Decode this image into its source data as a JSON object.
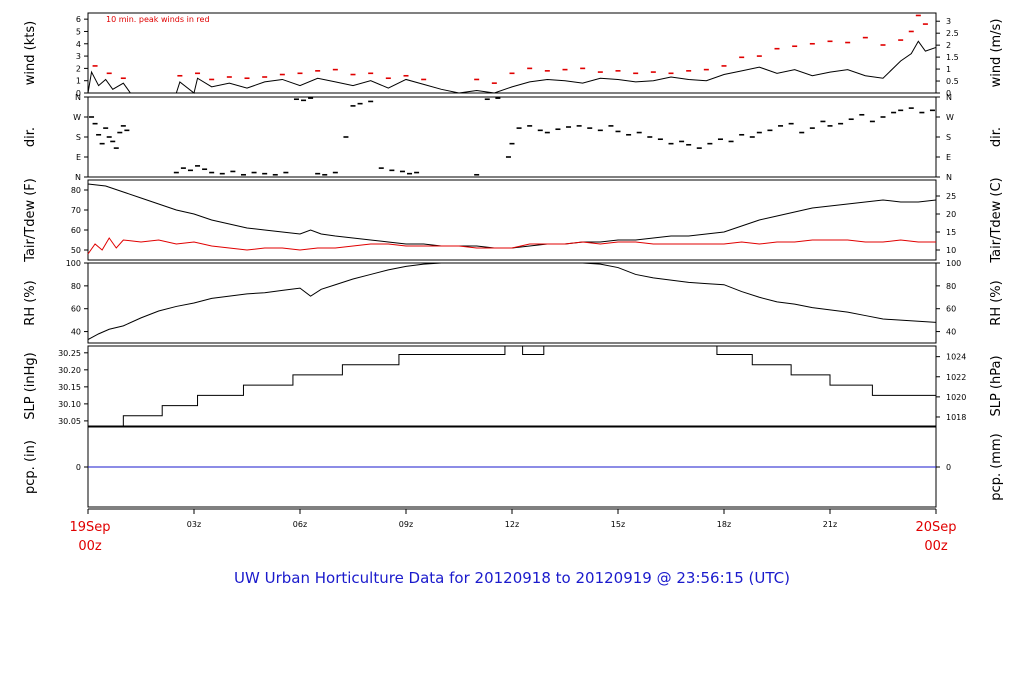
{
  "title": "UW Urban Horticulture Data for 20120918  to  20120919 @ 23:56:15  (UTC)",
  "colors": {
    "line": "#000000",
    "peak": "#e00000",
    "dew": "#e00000",
    "pcp": "#1a1acc",
    "title": "#1a1acc",
    "date_label": "#e00000"
  },
  "x_axis": {
    "ticks": [
      {
        "hour": 3,
        "label": "03z"
      },
      {
        "hour": 6,
        "label": "06z"
      },
      {
        "hour": 9,
        "label": "09z"
      },
      {
        "hour": 12,
        "label": "12z"
      },
      {
        "hour": 15,
        "label": "15z"
      },
      {
        "hour": 18,
        "label": "18z"
      },
      {
        "hour": 21,
        "label": "21z"
      }
    ],
    "start_label": [
      "19Sep",
      "00z"
    ],
    "end_label": [
      "20Sep",
      "00z"
    ],
    "range_hours": [
      0,
      24
    ]
  },
  "chart_data": [
    {
      "id": "wind",
      "type": "line",
      "ylabel_left": "wind (kts)",
      "ylabel_right": "wind (m/s)",
      "annotation": "10 min. peak winds in red",
      "ylim": [
        0,
        6.5
      ],
      "left_ticks": [
        0,
        1,
        2,
        3,
        4,
        5,
        6
      ],
      "right_ticks": [
        {
          "v": 0,
          "label": "0"
        },
        {
          "v": 0.5,
          "label": "0.5"
        },
        {
          "v": 1,
          "label": "1"
        },
        {
          "v": 1.5,
          "label": "1.5"
        },
        {
          "v": 2,
          "label": "2"
        },
        {
          "v": 2.5,
          "label": "2.5"
        },
        {
          "v": 3,
          "label": "3"
        }
      ],
      "right_factor": 1.944,
      "series": [
        {
          "role": "mean",
          "x": [
            0,
            0.1,
            0.3,
            0.5,
            0.7,
            1,
            1.2,
            2.5,
            2.6,
            3,
            3.1,
            3.5,
            4,
            4.5,
            5,
            5.5,
            6,
            6.5,
            7,
            7.5,
            8,
            8.5,
            9,
            9.5,
            10,
            10.5,
            11,
            11.5,
            12,
            12.5,
            13,
            13.5,
            14,
            14.5,
            15,
            15.5,
            16,
            16.5,
            17,
            17.5,
            18,
            18.5,
            19,
            19.5,
            20,
            20.5,
            21,
            21.5,
            22,
            22.5,
            23,
            23.3,
            23.5,
            23.7,
            24
          ],
          "values": [
            0,
            1.7,
            0.6,
            1.1,
            0.3,
            0.8,
            0,
            0,
            0.9,
            0,
            1.2,
            0.5,
            0.8,
            0.4,
            0.9,
            1.1,
            0.6,
            1.2,
            0.9,
            0.6,
            1,
            0.4,
            1.1,
            0.7,
            0.3,
            0,
            0.2,
            0,
            0.5,
            0.9,
            1.1,
            1,
            0.8,
            1.2,
            1.1,
            0.9,
            1,
            1.3,
            1.1,
            1,
            1.5,
            1.8,
            2.1,
            1.6,
            1.9,
            1.4,
            1.7,
            1.9,
            1.4,
            1.2,
            2.6,
            3.2,
            4.2,
            3.4,
            3.7
          ]
        },
        {
          "role": "peak",
          "x": [
            0.2,
            0.6,
            1,
            2.6,
            3.1,
            3.5,
            4,
            4.5,
            5,
            5.5,
            6,
            6.5,
            7,
            7.5,
            8,
            8.5,
            9,
            9.5,
            11,
            11.5,
            12,
            12.5,
            13,
            13.5,
            14,
            14.5,
            15,
            15.5,
            16,
            16.5,
            17,
            17.5,
            18,
            18.5,
            19,
            19.5,
            20,
            20.5,
            21,
            21.5,
            22,
            22.5,
            23,
            23.3,
            23.5,
            23.7
          ],
          "values": [
            2.2,
            1.6,
            1.2,
            1.4,
            1.6,
            1.1,
            1.3,
            1.2,
            1.3,
            1.5,
            1.6,
            1.8,
            1.9,
            1.5,
            1.6,
            1.2,
            1.4,
            1.1,
            1.1,
            0.8,
            1.6,
            2,
            1.8,
            1.9,
            2,
            1.7,
            1.8,
            1.6,
            1.7,
            1.6,
            1.8,
            1.9,
            2.2,
            2.9,
            3,
            3.6,
            3.8,
            4,
            4.2,
            4.1,
            4.5,
            3.9,
            4.3,
            5,
            6.3,
            5.6
          ]
        }
      ]
    },
    {
      "id": "dir",
      "type": "scatter",
      "ylabel_left": "dir.",
      "ylabel_right": "dir.",
      "ylim": [
        0,
        360
      ],
      "left_ticks": [
        {
          "v": 0,
          "label": "N"
        },
        {
          "v": 90,
          "label": "E"
        },
        {
          "v": 180,
          "label": "S"
        },
        {
          "v": 270,
          "label": "W"
        },
        {
          "v": 360,
          "label": "N"
        }
      ],
      "series": [
        {
          "role": "direction",
          "x": [
            0.1,
            0.2,
            0.3,
            0.4,
            0.5,
            0.6,
            0.7,
            0.8,
            0.9,
            1,
            1.1,
            2.5,
            2.7,
            2.9,
            3.1,
            3.3,
            3.5,
            3.8,
            4.1,
            4.4,
            4.7,
            5,
            5.3,
            5.6,
            5.9,
            6.1,
            6.3,
            6.5,
            6.7,
            7,
            7.3,
            7.5,
            7.7,
            8,
            8.3,
            8.6,
            8.9,
            9.1,
            9.3,
            11,
            11.3,
            11.6,
            11.9,
            12,
            12.2,
            12.5,
            12.8,
            13,
            13.3,
            13.6,
            13.9,
            14.2,
            14.5,
            14.8,
            15,
            15.3,
            15.6,
            15.9,
            16.2,
            16.5,
            16.8,
            17,
            17.3,
            17.6,
            17.9,
            18.2,
            18.5,
            18.8,
            19,
            19.3,
            19.6,
            19.9,
            20.2,
            20.5,
            20.8,
            21,
            21.3,
            21.6,
            21.9,
            22.2,
            22.5,
            22.8,
            23,
            23.3,
            23.6,
            23.9
          ],
          "values": [
            270,
            240,
            190,
            150,
            220,
            180,
            160,
            130,
            200,
            230,
            210,
            20,
            40,
            30,
            50,
            35,
            20,
            15,
            25,
            10,
            20,
            15,
            10,
            20,
            350,
            345,
            355,
            15,
            10,
            20,
            180,
            320,
            330,
            340,
            40,
            30,
            25,
            15,
            20,
            10,
            350,
            355,
            90,
            150,
            220,
            230,
            210,
            200,
            215,
            225,
            230,
            220,
            210,
            230,
            205,
            190,
            200,
            180,
            170,
            150,
            160,
            145,
            130,
            150,
            170,
            160,
            190,
            180,
            200,
            210,
            230,
            240,
            200,
            220,
            250,
            230,
            240,
            260,
            280,
            250,
            270,
            290,
            300,
            310,
            290,
            300
          ]
        }
      ]
    },
    {
      "id": "temp",
      "type": "line",
      "ylabel_left": "Tair/Tdew (F)",
      "ylabel_right": "Tair/Tdew (C)",
      "ylim": [
        45,
        85
      ],
      "left_ticks": [
        50,
        60,
        70,
        80
      ],
      "right_ticks": [
        {
          "v": 10,
          "label": "10"
        },
        {
          "v": 15,
          "label": "15"
        },
        {
          "v": 20,
          "label": "20"
        },
        {
          "v": 25,
          "label": "25"
        }
      ],
      "right_unit": "C",
      "series": [
        {
          "role": "air",
          "x": [
            0,
            0.5,
            1,
            1.5,
            2,
            2.5,
            3,
            3.5,
            4,
            4.5,
            5,
            5.5,
            6,
            6.3,
            6.6,
            7,
            7.5,
            8,
            8.5,
            9,
            9.5,
            10,
            10.5,
            11,
            11.5,
            12,
            12.5,
            13,
            13.5,
            14,
            14.5,
            15,
            15.5,
            16,
            16.5,
            17,
            17.5,
            18,
            18.5,
            19,
            19.5,
            20,
            20.5,
            21,
            21.5,
            22,
            22.5,
            23,
            23.5,
            24
          ],
          "values": [
            83,
            82,
            79,
            76,
            73,
            70,
            68,
            65,
            63,
            61,
            60,
            59,
            58,
            60,
            58,
            57,
            56,
            55,
            54,
            53,
            53,
            52,
            52,
            52,
            51,
            51,
            52,
            53,
            53,
            54,
            54,
            55,
            55,
            56,
            57,
            57,
            58,
            59,
            62,
            65,
            67,
            69,
            71,
            72,
            73,
            74,
            75,
            74,
            74,
            75
          ]
        },
        {
          "role": "dew",
          "x": [
            0,
            0.2,
            0.4,
            0.6,
            0.8,
            1,
            1.5,
            2,
            2.5,
            3,
            3.5,
            4,
            4.5,
            5,
            5.5,
            6,
            6.5,
            7,
            7.5,
            8,
            8.5,
            9,
            9.5,
            10,
            10.5,
            11,
            11.5,
            12,
            12.5,
            13,
            13.5,
            14,
            14.5,
            15,
            15.5,
            16,
            16.5,
            17,
            17.5,
            18,
            18.5,
            19,
            19.5,
            20,
            20.5,
            21,
            21.5,
            22,
            22.5,
            23,
            23.5,
            24
          ],
          "values": [
            48,
            53,
            50,
            56,
            51,
            55,
            54,
            55,
            53,
            54,
            52,
            51,
            50,
            51,
            51,
            50,
            51,
            51,
            52,
            53,
            53,
            52,
            52,
            52,
            52,
            51,
            51,
            51,
            53,
            53,
            53,
            54,
            53,
            54,
            54,
            53,
            53,
            53,
            53,
            53,
            54,
            53,
            54,
            54,
            55,
            55,
            55,
            54,
            54,
            55,
            54,
            54
          ]
        }
      ]
    },
    {
      "id": "rh",
      "type": "line",
      "ylabel_left": "RH (%)",
      "ylabel_right": "RH (%)",
      "ylim": [
        30,
        100
      ],
      "left_ticks": [
        40,
        60,
        80,
        100
      ],
      "right_ticks": [
        {
          "v": 40,
          "label": "40"
        },
        {
          "v": 60,
          "label": "60"
        },
        {
          "v": 80,
          "label": "80"
        },
        {
          "v": 100,
          "label": "100"
        }
      ],
      "series": [
        {
          "role": "rh",
          "x": [
            0,
            0.3,
            0.6,
            1,
            1.5,
            2,
            2.5,
            3,
            3.5,
            4,
            4.5,
            5,
            5.5,
            6,
            6.3,
            6.6,
            7,
            7.5,
            8,
            8.5,
            9,
            9.5,
            10,
            11,
            12,
            13,
            14,
            14.5,
            15,
            15.5,
            16,
            16.5,
            17,
            17.5,
            18,
            18.5,
            19,
            19.5,
            20,
            20.5,
            21,
            21.5,
            22,
            22.5,
            23,
            23.5,
            24
          ],
          "values": [
            33,
            38,
            42,
            45,
            52,
            58,
            62,
            65,
            69,
            71,
            73,
            74,
            76,
            78,
            71,
            77,
            81,
            86,
            90,
            94,
            97,
            99,
            100,
            100,
            100,
            100,
            100,
            99,
            96,
            90,
            87,
            85,
            83,
            82,
            81,
            75,
            70,
            66,
            64,
            61,
            59,
            57,
            54,
            51,
            50,
            49,
            48
          ]
        }
      ]
    },
    {
      "id": "slp",
      "type": "line",
      "ylabel_left": "SLP (inHg)",
      "ylabel_right": "SLP (hPa)",
      "ylim": [
        30.035,
        30.27
      ],
      "left_ticks": [
        30.05,
        30.1,
        30.15,
        30.2,
        30.25
      ],
      "right_ticks": [
        {
          "v": 1018,
          "label": "1018"
        },
        {
          "v": 1020,
          "label": "1020"
        },
        {
          "v": 1022,
          "label": "1022"
        },
        {
          "v": 1024,
          "label": "1024"
        }
      ],
      "right_unit": "hPa",
      "series": [
        {
          "role": "slp",
          "step": true,
          "x": [
            0,
            1,
            2.1,
            3.1,
            4.4,
            5.8,
            7.2,
            8.8,
            11.8,
            12.3,
            12.9,
            17.8,
            18.8,
            19.9,
            21,
            22.2,
            24
          ],
          "values": [
            30.035,
            30.065,
            30.095,
            30.125,
            30.155,
            30.185,
            30.215,
            30.245,
            30.27,
            30.245,
            30.27,
            30.245,
            30.215,
            30.185,
            30.155,
            30.125,
            30.125
          ]
        }
      ]
    },
    {
      "id": "pcp",
      "type": "line",
      "ylabel_left": "pcp. (in)",
      "ylabel_right": "pcp. (mm)",
      "ylim": [
        -1,
        1
      ],
      "left_ticks": [
        0
      ],
      "right_ticks": [
        {
          "v": 0,
          "label": "0"
        }
      ],
      "series": [
        {
          "role": "pcp",
          "x": [
            0,
            24
          ],
          "values": [
            0,
            0
          ]
        }
      ]
    }
  ]
}
